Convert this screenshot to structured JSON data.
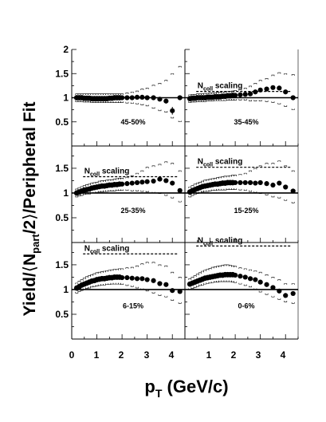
{
  "chart_data": {
    "type": "scatter",
    "xlabel_main": "p",
    "xlabel_sub": "T",
    "xlabel_rest": " (GeV/c)",
    "ylabel_a": "Yield/",
    "ylabel_b": "N",
    "ylabel_sub": "part",
    "ylabel_c": "/2",
    "ylabel_d": "/Peripheral Fit",
    "xlim": [
      0,
      4.5
    ],
    "ylim": [
      0,
      2
    ],
    "x_ticks_left": [
      "0",
      "1",
      "2",
      "3",
      "4"
    ],
    "x_ticks_right": [
      "1",
      "2",
      "3",
      "4"
    ],
    "y_ticks_top": [
      "0.5",
      "1",
      "1.5",
      "2"
    ],
    "y_ticks": [
      "0.5",
      "1",
      "1.5"
    ],
    "ncoll_text": "N",
    "ncoll_sub": "coll",
    "ncoll_rest": " scaling",
    "panels": [
      {
        "label": "45-50%",
        "ncoll": null,
        "x": [
          0.2,
          0.3,
          0.4,
          0.5,
          0.6,
          0.7,
          0.8,
          0.9,
          1.0,
          1.1,
          1.2,
          1.3,
          1.4,
          1.5,
          1.6,
          1.7,
          1.8,
          1.9,
          2.0,
          2.2,
          2.4,
          2.6,
          2.8,
          3.0,
          3.25,
          3.5,
          3.75,
          4.0,
          4.3
        ],
        "y": [
          1.0,
          1.0,
          1.0,
          0.99,
          0.99,
          0.99,
          0.98,
          0.98,
          0.98,
          0.98,
          0.98,
          0.98,
          0.98,
          0.99,
          0.99,
          1.0,
          1.0,
          1.0,
          1.0,
          1.0,
          1.0,
          1.01,
          1.01,
          1.0,
          1.0,
          0.97,
          0.93,
          0.73,
          1.0
        ],
        "sys_high": [
          1.08,
          1.08,
          1.08,
          1.08,
          1.08,
          1.08,
          1.08,
          1.08,
          1.08,
          1.08,
          1.08,
          1.08,
          1.08,
          1.08,
          1.08,
          1.08,
          1.08,
          1.08,
          1.08,
          1.1,
          1.12,
          1.14,
          1.18,
          1.2,
          1.26,
          1.3,
          1.36,
          1.5,
          1.65
        ],
        "sys_low": [
          0.92,
          0.92,
          0.92,
          0.91,
          0.91,
          0.91,
          0.9,
          0.9,
          0.9,
          0.9,
          0.9,
          0.9,
          0.9,
          0.9,
          0.9,
          0.9,
          0.9,
          0.9,
          0.9,
          0.89,
          0.88,
          0.87,
          0.85,
          0.83,
          0.78,
          0.73,
          0.7,
          0.58,
          0.5
        ]
      },
      {
        "label": "35-45%",
        "ncoll": 1.13,
        "x": [
          0.2,
          0.3,
          0.4,
          0.5,
          0.6,
          0.7,
          0.8,
          0.9,
          1.0,
          1.1,
          1.2,
          1.3,
          1.4,
          1.5,
          1.6,
          1.7,
          1.8,
          1.9,
          2.0,
          2.2,
          2.4,
          2.6,
          2.8,
          3.0,
          3.25,
          3.5,
          3.75,
          4.0,
          4.3
        ],
        "y": [
          0.98,
          0.99,
          0.99,
          1.0,
          1.0,
          1.0,
          1.0,
          1.01,
          1.01,
          1.01,
          1.02,
          1.02,
          1.02,
          1.03,
          1.03,
          1.04,
          1.04,
          1.05,
          1.05,
          1.06,
          1.07,
          1.08,
          1.12,
          1.16,
          1.18,
          1.21,
          1.2,
          1.12,
          1.0
        ],
        "sys_high": [
          1.06,
          1.07,
          1.07,
          1.08,
          1.08,
          1.08,
          1.09,
          1.09,
          1.1,
          1.1,
          1.1,
          1.11,
          1.11,
          1.12,
          1.12,
          1.13,
          1.13,
          1.14,
          1.15,
          1.17,
          1.2,
          1.24,
          1.3,
          1.36,
          1.4,
          1.47,
          1.52,
          1.5,
          1.48
        ],
        "sys_low": [
          0.9,
          0.91,
          0.91,
          0.92,
          0.92,
          0.92,
          0.92,
          0.93,
          0.93,
          0.93,
          0.94,
          0.94,
          0.94,
          0.94,
          0.94,
          0.95,
          0.95,
          0.95,
          0.95,
          0.95,
          0.95,
          0.93,
          0.93,
          0.93,
          0.92,
          0.9,
          0.87,
          0.82,
          0.75
        ]
      },
      {
        "label": "25-35%",
        "ncoll": 1.33,
        "x": [
          0.2,
          0.3,
          0.4,
          0.5,
          0.6,
          0.7,
          0.8,
          0.9,
          1.0,
          1.1,
          1.2,
          1.3,
          1.4,
          1.5,
          1.6,
          1.7,
          1.8,
          1.9,
          2.0,
          2.2,
          2.4,
          2.6,
          2.8,
          3.0,
          3.25,
          3.5,
          3.75,
          4.0,
          4.3
        ],
        "y": [
          1.0,
          1.02,
          1.04,
          1.06,
          1.07,
          1.08,
          1.1,
          1.11,
          1.12,
          1.13,
          1.14,
          1.14,
          1.15,
          1.16,
          1.16,
          1.17,
          1.17,
          1.18,
          1.18,
          1.19,
          1.2,
          1.21,
          1.22,
          1.23,
          1.24,
          1.28,
          1.25,
          1.2,
          1.05
        ],
        "sys_high": [
          1.08,
          1.11,
          1.13,
          1.15,
          1.17,
          1.18,
          1.2,
          1.21,
          1.22,
          1.24,
          1.25,
          1.25,
          1.26,
          1.27,
          1.27,
          1.28,
          1.29,
          1.3,
          1.3,
          1.32,
          1.35,
          1.4,
          1.45,
          1.52,
          1.55,
          1.58,
          1.63,
          1.6,
          1.45
        ],
        "sys_low": [
          0.92,
          0.94,
          0.95,
          0.97,
          0.98,
          0.98,
          1.0,
          1.0,
          1.01,
          1.02,
          1.02,
          1.03,
          1.03,
          1.04,
          1.04,
          1.04,
          1.05,
          1.05,
          1.05,
          1.05,
          1.04,
          1.04,
          1.03,
          1.02,
          1.0,
          0.99,
          0.95,
          0.9,
          0.82
        ]
      },
      {
        "label": "15-25%",
        "ncoll": 1.52,
        "x": [
          0.2,
          0.3,
          0.4,
          0.5,
          0.6,
          0.7,
          0.8,
          0.9,
          1.0,
          1.1,
          1.2,
          1.3,
          1.4,
          1.5,
          1.6,
          1.7,
          1.8,
          1.9,
          2.0,
          2.2,
          2.4,
          2.6,
          2.8,
          3.0,
          3.25,
          3.5,
          3.75,
          4.0,
          4.3
        ],
        "y": [
          1.02,
          1.05,
          1.07,
          1.09,
          1.11,
          1.13,
          1.14,
          1.15,
          1.16,
          1.17,
          1.18,
          1.18,
          1.19,
          1.2,
          1.2,
          1.21,
          1.21,
          1.21,
          1.21,
          1.21,
          1.21,
          1.21,
          1.2,
          1.21,
          1.19,
          1.16,
          1.2,
          1.12,
          1.04
        ],
        "sys_high": [
          1.12,
          1.15,
          1.18,
          1.2,
          1.22,
          1.24,
          1.26,
          1.27,
          1.28,
          1.29,
          1.3,
          1.31,
          1.32,
          1.33,
          1.34,
          1.34,
          1.35,
          1.36,
          1.36,
          1.38,
          1.4,
          1.45,
          1.5,
          1.55,
          1.6,
          1.6,
          1.65,
          1.55,
          1.45
        ],
        "sys_low": [
          0.92,
          0.95,
          0.97,
          0.99,
          1.0,
          1.02,
          1.03,
          1.03,
          1.04,
          1.05,
          1.05,
          1.06,
          1.06,
          1.06,
          1.06,
          1.07,
          1.07,
          1.07,
          1.07,
          1.06,
          1.05,
          1.03,
          1.01,
          0.99,
          0.96,
          0.92,
          0.9,
          0.85,
          0.8
        ]
      },
      {
        "label": "6-15%",
        "ncoll": 1.72,
        "x": [
          0.2,
          0.3,
          0.4,
          0.5,
          0.6,
          0.7,
          0.8,
          0.9,
          1.0,
          1.1,
          1.2,
          1.3,
          1.4,
          1.5,
          1.6,
          1.7,
          1.8,
          1.9,
          2.0,
          2.2,
          2.4,
          2.6,
          2.8,
          3.0,
          3.25,
          3.5,
          3.75,
          4.0,
          4.3
        ],
        "y": [
          1.03,
          1.06,
          1.09,
          1.11,
          1.13,
          1.15,
          1.17,
          1.18,
          1.2,
          1.21,
          1.22,
          1.22,
          1.23,
          1.24,
          1.24,
          1.25,
          1.25,
          1.25,
          1.24,
          1.24,
          1.23,
          1.22,
          1.22,
          1.2,
          1.18,
          1.12,
          1.1,
          0.98,
          0.96
        ],
        "sys_high": [
          1.13,
          1.17,
          1.2,
          1.23,
          1.26,
          1.28,
          1.3,
          1.32,
          1.34,
          1.35,
          1.36,
          1.37,
          1.38,
          1.39,
          1.4,
          1.41,
          1.41,
          1.42,
          1.42,
          1.44,
          1.45,
          1.48,
          1.52,
          1.55,
          1.55,
          1.5,
          1.48,
          1.35,
          1.25
        ],
        "sys_low": [
          0.93,
          0.96,
          0.98,
          1.0,
          1.02,
          1.03,
          1.05,
          1.06,
          1.07,
          1.08,
          1.09,
          1.09,
          1.1,
          1.1,
          1.11,
          1.11,
          1.11,
          1.11,
          1.1,
          1.08,
          1.06,
          1.03,
          1.0,
          0.97,
          0.93,
          0.88,
          0.85,
          0.78,
          0.72
        ]
      },
      {
        "label": "0-6%",
        "ncoll": 1.88,
        "x": [
          0.2,
          0.3,
          0.4,
          0.5,
          0.6,
          0.7,
          0.8,
          0.9,
          1.0,
          1.1,
          1.2,
          1.3,
          1.4,
          1.5,
          1.6,
          1.7,
          1.8,
          1.9,
          2.0,
          2.2,
          2.4,
          2.6,
          2.8,
          3.0,
          3.25,
          3.5,
          3.75,
          4.0,
          4.3
        ],
        "y": [
          1.11,
          1.13,
          1.15,
          1.17,
          1.19,
          1.21,
          1.23,
          1.24,
          1.25,
          1.26,
          1.27,
          1.28,
          1.29,
          1.29,
          1.3,
          1.3,
          1.3,
          1.3,
          1.29,
          1.27,
          1.25,
          1.22,
          1.2,
          1.15,
          1.1,
          1.04,
          0.97,
          0.88,
          0.92
        ],
        "sys_high": [
          1.22,
          1.25,
          1.28,
          1.31,
          1.34,
          1.37,
          1.39,
          1.41,
          1.43,
          1.45,
          1.46,
          1.47,
          1.48,
          1.49,
          1.5,
          1.5,
          1.49,
          1.48,
          1.47,
          1.44,
          1.42,
          1.4,
          1.38,
          1.35,
          1.3,
          1.25,
          1.2,
          1.12,
          1.12
        ],
        "sys_low": [
          1.0,
          1.02,
          1.04,
          1.06,
          1.08,
          1.09,
          1.11,
          1.12,
          1.13,
          1.14,
          1.15,
          1.15,
          1.16,
          1.16,
          1.16,
          1.16,
          1.16,
          1.15,
          1.14,
          1.11,
          1.08,
          1.05,
          1.0,
          0.95,
          0.9,
          0.85,
          0.8,
          0.75,
          0.72
        ]
      }
    ]
  }
}
